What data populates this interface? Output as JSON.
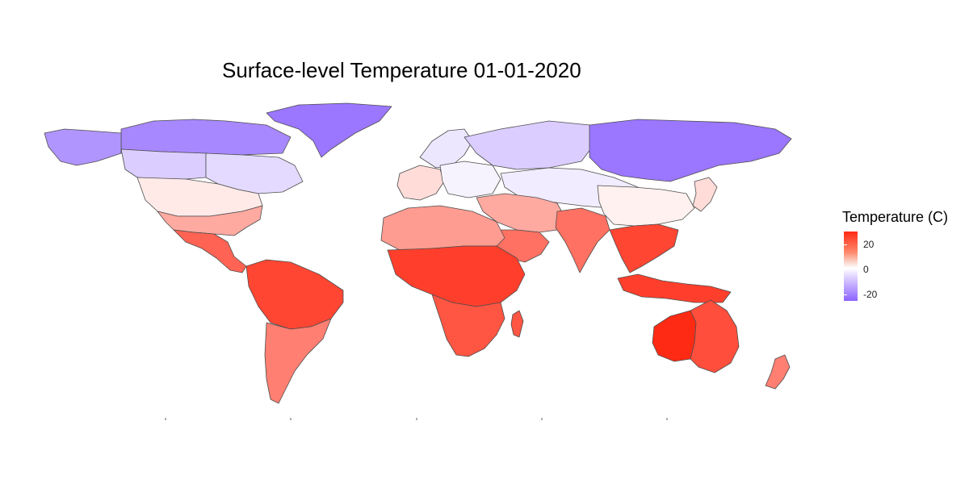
{
  "title": "Surface-level Temperature 01-01-2020",
  "legend": {
    "title": "Temperature (C)",
    "ticks": [
      {
        "label": "20",
        "value": 20
      },
      {
        "label": "0",
        "value": 0
      },
      {
        "label": "-20",
        "value": -20
      }
    ],
    "colors": {
      "high": "#ff2a14",
      "mid": "#ffffff",
      "low": "#8d63ff"
    }
  },
  "map": {
    "projection": "equirectangular world",
    "boundary_color": "#4d4d4d",
    "regions": [
      {
        "name": "Greenland",
        "temp": -22
      },
      {
        "name": "Northern Canada",
        "temp": -19
      },
      {
        "name": "Alaska",
        "temp": -17
      },
      {
        "name": "Western Canada",
        "temp": -8
      },
      {
        "name": "Eastern Canada",
        "temp": -6
      },
      {
        "name": "Northern United States",
        "temp": 3
      },
      {
        "name": "Southern United States",
        "temp": 12
      },
      {
        "name": "Mexico and Central America",
        "temp": 22
      },
      {
        "name": "Northern South America",
        "temp": 26
      },
      {
        "name": "Southern South America",
        "temp": 18
      },
      {
        "name": "Scandinavia",
        "temp": -4
      },
      {
        "name": "Western Europe",
        "temp": 5
      },
      {
        "name": "Eastern Europe",
        "temp": -2
      },
      {
        "name": "European Russia",
        "temp": -8
      },
      {
        "name": "Siberia",
        "temp": -22
      },
      {
        "name": "Central Asia",
        "temp": -3
      },
      {
        "name": "Middle East",
        "temp": 12
      },
      {
        "name": "Arabian Peninsula",
        "temp": 20
      },
      {
        "name": "North Africa",
        "temp": 14
      },
      {
        "name": "Sub-Saharan Africa",
        "temp": 27
      },
      {
        "name": "Southern Africa",
        "temp": 24
      },
      {
        "name": "Madagascar",
        "temp": 24
      },
      {
        "name": "India",
        "temp": 20
      },
      {
        "name": "China",
        "temp": 2
      },
      {
        "name": "Southeast Asia",
        "temp": 26
      },
      {
        "name": "Japan",
        "temp": 5
      },
      {
        "name": "Indonesia",
        "temp": 27
      },
      {
        "name": "Western Australia",
        "temp": 30
      },
      {
        "name": "Eastern Australia",
        "temp": 25
      },
      {
        "name": "New Zealand",
        "temp": 18
      }
    ]
  }
}
